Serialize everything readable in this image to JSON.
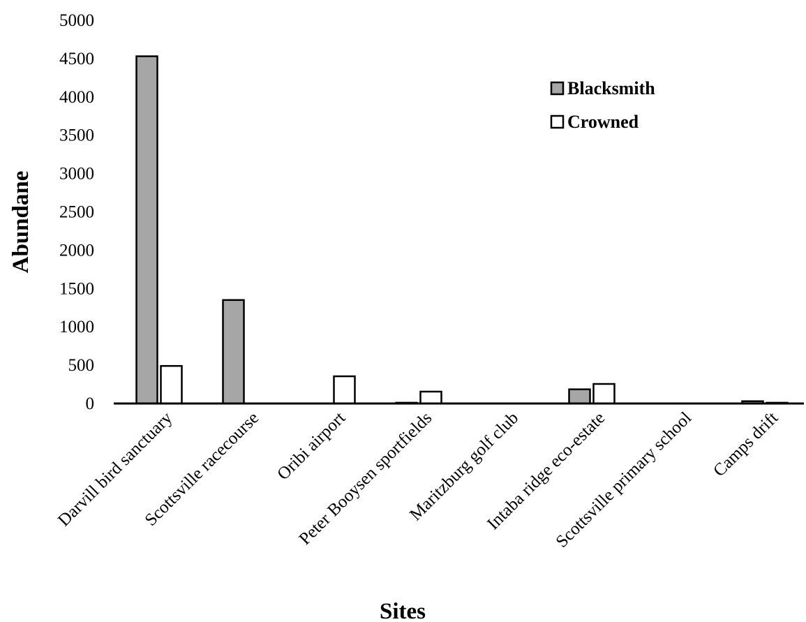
{
  "chart_data": {
    "type": "bar",
    "title": "",
    "xlabel": "Sites",
    "ylabel": "Abundane",
    "ylim": [
      0,
      5000
    ],
    "yticks": [
      "0",
      "500",
      "1000",
      "1500",
      "2000",
      "2500",
      "3000",
      "3500",
      "4000",
      "4500",
      "5000"
    ],
    "grid": false,
    "legend_position": "top-right",
    "categories": [
      "Darvill bird sanctuary",
      "Scottsville racecourse",
      "Oribi airport",
      "Peter Booysen sportfields",
      "Maritzburg golf club",
      "Intaba ridge eco-estate",
      "Scottsville primary school",
      "Camps drift"
    ],
    "series": [
      {
        "name": "Blacksmith",
        "color": "#a6a6a6",
        "values": [
          4530,
          1350,
          0,
          10,
          0,
          185,
          0,
          30
        ]
      },
      {
        "name": "Crowned",
        "color": "#ffffff",
        "values": [
          490,
          0,
          355,
          155,
          0,
          255,
          0,
          10
        ]
      }
    ]
  }
}
